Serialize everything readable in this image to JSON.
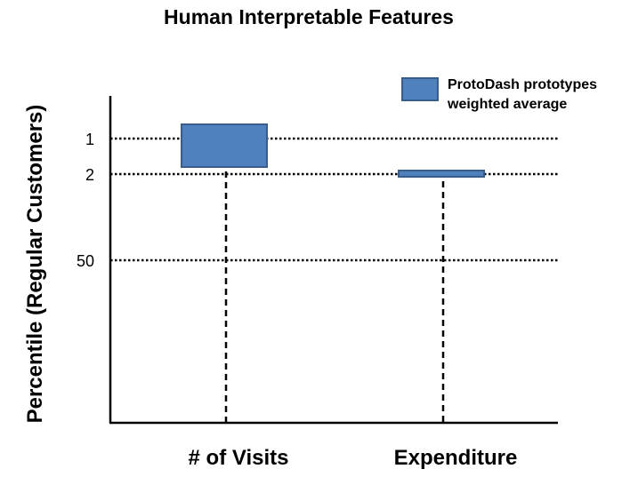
{
  "chart_data": {
    "type": "bar",
    "title": "Human Interpretable Features",
    "xlabel": "",
    "ylabel": "Percentile (Regular Customers)",
    "categories": [
      "# of Visits",
      "Expenditure"
    ],
    "y_ticks": [
      {
        "value": 1,
        "label": "1"
      },
      {
        "value": 2,
        "label": "2"
      },
      {
        "value": 50,
        "label": "50"
      }
    ],
    "y_reversed": true,
    "grid": "dotted lines at tick values",
    "legend": {
      "placement": "top-right",
      "label_line1": "ProtoDash prototypes",
      "label_line2": "weighted average"
    },
    "series": [
      {
        "name": "ProtoDash prototypes weighted average",
        "color": "#4f81bd",
        "edge_color": "#385d8a",
        "boxes": [
          {
            "category": "# of Visits",
            "top": 0.2,
            "bottom": 1.8
          },
          {
            "category": "Expenditure",
            "top": 1.9,
            "bottom": 3.5
          }
        ]
      }
    ]
  }
}
